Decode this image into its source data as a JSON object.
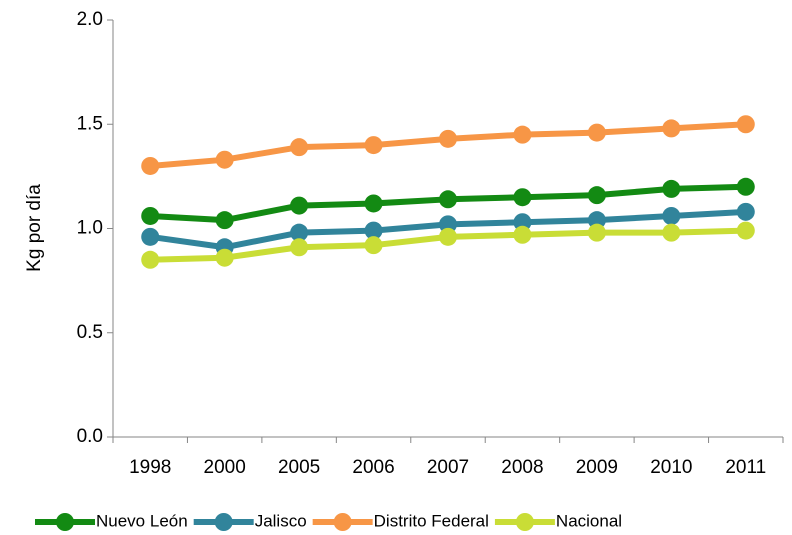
{
  "chart_data": {
    "type": "line",
    "y_label": "Kg por día",
    "categories": [
      "1998",
      "2000",
      "2005",
      "2006",
      "2007",
      "2008",
      "2009",
      "2010",
      "2011"
    ],
    "series": [
      {
        "name": "Nuevo León",
        "color": "#138a13",
        "values": [
          1.06,
          1.04,
          1.11,
          1.12,
          1.14,
          1.15,
          1.16,
          1.19,
          1.2
        ]
      },
      {
        "name": "Jalisco",
        "color": "#31849b",
        "values": [
          0.96,
          0.91,
          0.98,
          0.99,
          1.02,
          1.03,
          1.04,
          1.06,
          1.08
        ]
      },
      {
        "name": "Distrito Federal",
        "color": "#f79646",
        "values": [
          1.3,
          1.33,
          1.39,
          1.4,
          1.43,
          1.45,
          1.46,
          1.48,
          1.5
        ]
      },
      {
        "name": "Nacional",
        "color": "#c9dd36",
        "values": [
          0.85,
          0.86,
          0.91,
          0.92,
          0.96,
          0.97,
          0.98,
          0.98,
          0.99
        ]
      }
    ],
    "ylim": [
      0,
      2
    ],
    "yticks": [
      {
        "value": 0,
        "label": "0.0"
      },
      0.5,
      {
        "value": 1,
        "label": "1.0"
      },
      1.5,
      {
        "value": 2,
        "label": "2.0"
      }
    ],
    "grid": false,
    "legend": "bottom"
  }
}
